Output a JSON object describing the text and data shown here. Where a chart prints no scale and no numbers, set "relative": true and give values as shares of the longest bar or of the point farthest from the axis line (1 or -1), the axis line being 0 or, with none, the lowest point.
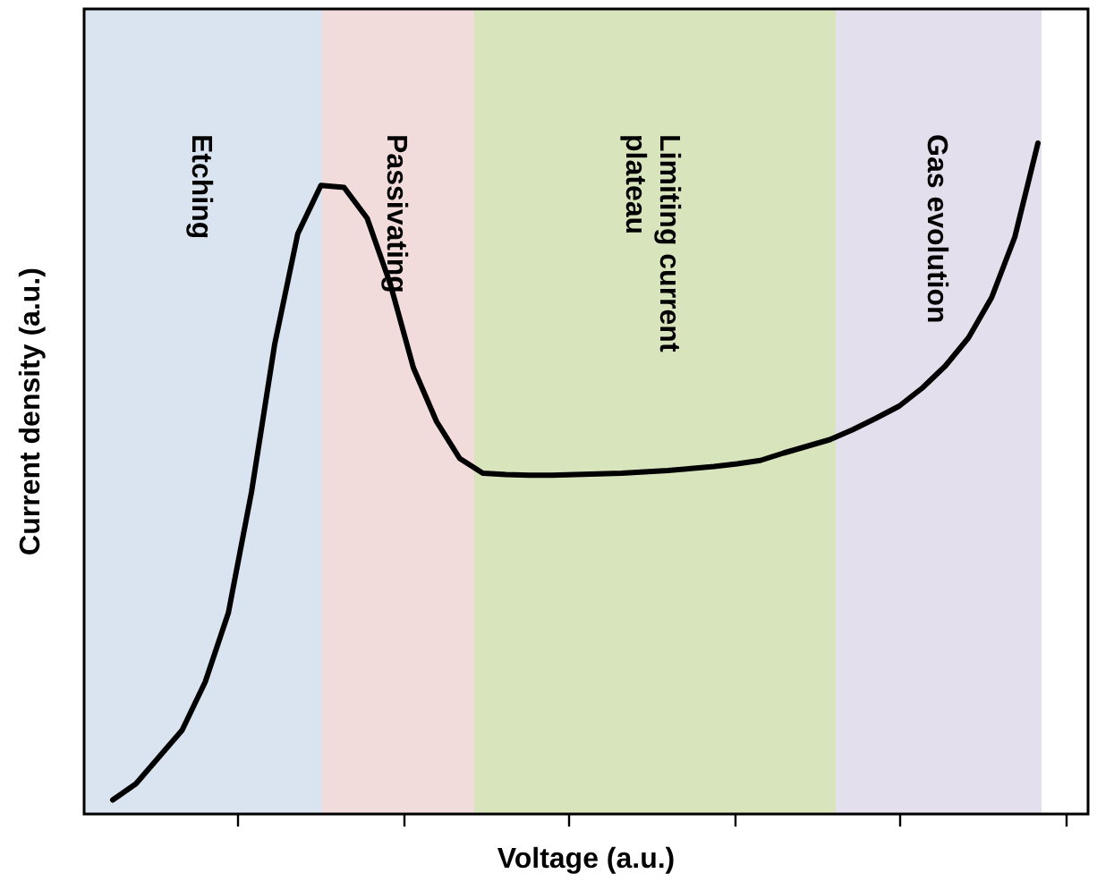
{
  "chart_data": {
    "type": "line",
    "xlabel": "Voltage (a.u.)",
    "ylabel": "Current density (a.u.)",
    "relative": true,
    "categories": [
      null,
      null,
      null,
      null,
      null,
      null,
      null,
      null,
      null,
      null,
      null,
      null,
      null,
      null,
      null,
      null,
      null,
      null,
      null,
      null,
      null,
      null,
      null,
      null,
      null,
      null,
      null,
      null,
      null,
      null,
      null,
      null,
      null,
      null,
      null,
      null,
      null,
      null,
      null,
      null,
      null
    ],
    "marker": "none",
    "line_style": "solid",
    "annotations": [
      "Etching",
      "Passivating",
      "Limiting current plateau",
      "Gas evolution"
    ],
    "series": [
      {
        "color": "#000000",
        "values": [
          0.021,
          0.045,
          0.085,
          0.125,
          0.197,
          0.3,
          0.48,
          0.7,
          0.865,
          0.937,
          0.934,
          0.888,
          0.79,
          0.665,
          0.585,
          0.53,
          0.508,
          0.506,
          0.505,
          0.505,
          0.506,
          0.507,
          0.508,
          0.51,
          0.512,
          0.515,
          0.518,
          0.522,
          0.527,
          0.538,
          0.548,
          0.558,
          0.573,
          0.59,
          0.608,
          0.635,
          0.668,
          0.71,
          0.77,
          0.86,
          1
        ]
      }
    ]
  }
}
